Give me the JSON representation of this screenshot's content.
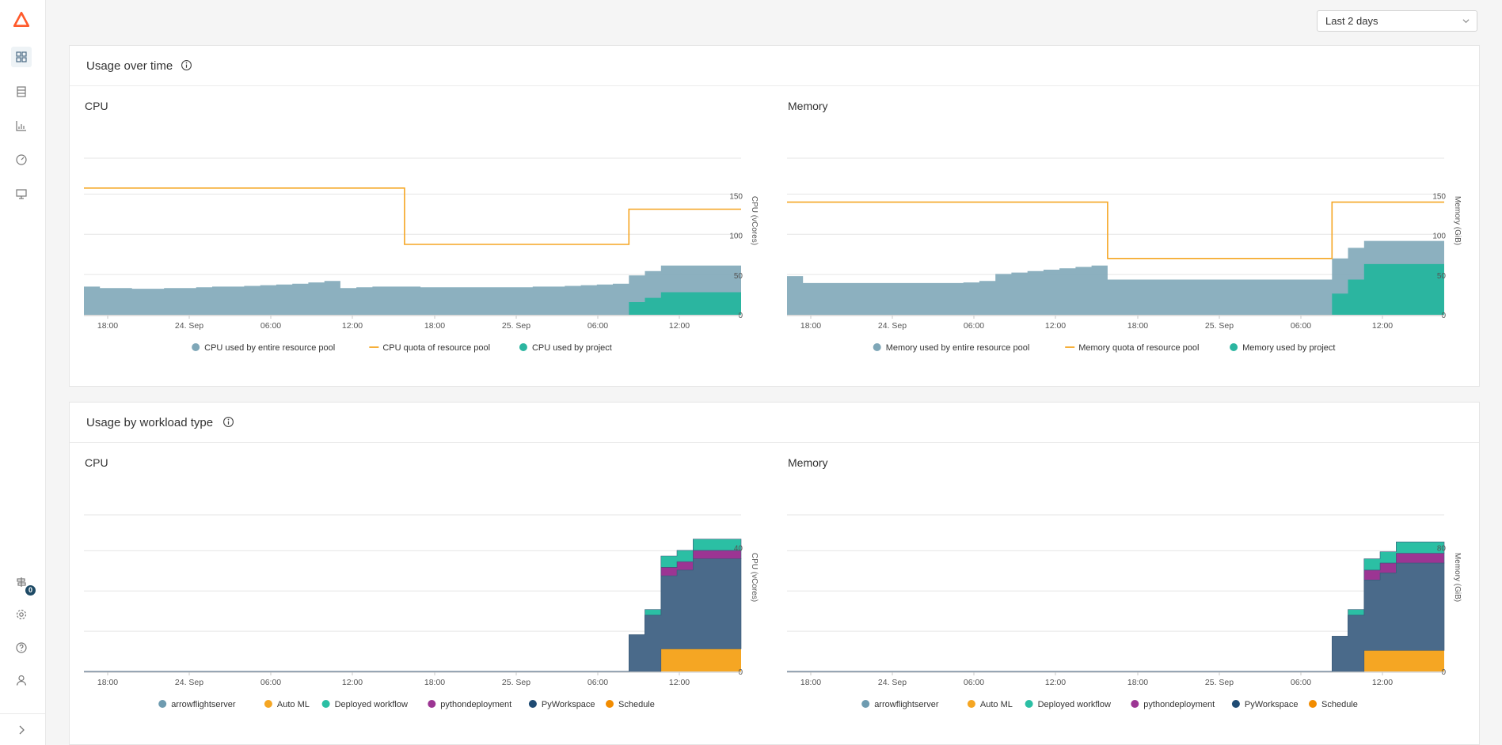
{
  "sidebar": {
    "items": [
      {
        "icon": "dashboard-icon"
      },
      {
        "icon": "list-icon"
      },
      {
        "icon": "bar-chart-icon"
      },
      {
        "icon": "gauge-icon"
      },
      {
        "icon": "monitor-icon"
      }
    ],
    "bottom": [
      {
        "icon": "signpost-icon",
        "badge": "0"
      },
      {
        "icon": "gear-icon"
      },
      {
        "icon": "help-icon"
      },
      {
        "icon": "user-icon"
      }
    ],
    "expand_icon": "chevron-right-icon"
  },
  "colors": {
    "pool": "#7fa7b8",
    "quota": "#f5a623",
    "project": "#2bb5a0",
    "arrowflightserver": "#6e9bb0",
    "automl": "#f5a623",
    "deployed_workflow": "#2bbfa4",
    "pythondeployment": "#9c3593",
    "pyworkspace": "#1f4b73",
    "schedule": "#f28c00"
  },
  "header": {
    "range_label": "Last 2 days"
  },
  "usage_over_time": {
    "title": "Usage over time",
    "cpu": {
      "title": "CPU",
      "ylabel": "CPU (vCores)",
      "yticks": [
        "0",
        "50",
        "100",
        "150"
      ],
      "xticks": [
        "18:00",
        "24. Sep",
        "06:00",
        "12:00",
        "18:00",
        "25. Sep",
        "06:00",
        "12:00"
      ],
      "legend": [
        "CPU used by entire resource pool",
        "CPU quota of resource pool",
        "CPU used by project"
      ]
    },
    "memory": {
      "title": "Memory",
      "ylabel": "Memory (GiB)",
      "yticks": [
        "0",
        "50",
        "100",
        "150"
      ],
      "xticks": [
        "18:00",
        "24. Sep",
        "06:00",
        "12:00",
        "18:00",
        "25. Sep",
        "06:00",
        "12:00"
      ],
      "legend": [
        "Memory used by entire resource pool",
        "Memory quota of resource pool",
        "Memory used by project"
      ]
    }
  },
  "usage_by_workload": {
    "title": "Usage by workload type",
    "cpu": {
      "title": "CPU",
      "ylabel": "CPU (vCores)",
      "yticks": [
        "0",
        "40"
      ],
      "xticks": [
        "18:00",
        "24. Sep",
        "06:00",
        "12:00",
        "18:00",
        "25. Sep",
        "06:00",
        "12:00"
      ],
      "legend": [
        "arrowflightserver",
        "Auto ML",
        "Deployed workflow",
        "pythondeployment",
        "PyWorkspace",
        "Schedule"
      ]
    },
    "memory": {
      "title": "Memory",
      "ylabel": "Memory (GiB)",
      "yticks": [
        "0",
        "80"
      ],
      "xticks": [
        "18:00",
        "24. Sep",
        "06:00",
        "12:00",
        "18:00",
        "25. Sep",
        "06:00",
        "12:00"
      ],
      "legend": [
        "arrowflightserver",
        "Auto ML",
        "Deployed workflow",
        "pythondeployment",
        "PyWorkspace",
        "Schedule"
      ]
    }
  },
  "chart_data": [
    {
      "type": "area",
      "title": "CPU",
      "ylabel": "CPU (vCores)",
      "ylim": [
        0,
        200
      ],
      "series": [
        {
          "name": "CPU used by entire resource pool",
          "values": [
            40,
            38,
            38,
            37,
            37,
            38,
            38,
            39,
            40,
            40,
            41,
            42,
            43,
            44,
            46,
            48,
            38,
            39,
            40,
            40,
            40,
            39,
            39,
            39,
            39,
            39,
            39,
            39,
            40,
            40,
            41,
            42,
            43,
            44,
            56,
            62,
            70,
            70,
            70,
            70,
            70
          ]
        },
        {
          "name": "CPU quota of resource pool",
          "values": [
            180,
            180,
            180,
            180,
            180,
            180,
            180,
            180,
            180,
            180,
            180,
            180,
            180,
            180,
            180,
            180,
            180,
            180,
            180,
            180,
            100,
            100,
            100,
            100,
            100,
            100,
            100,
            100,
            100,
            100,
            100,
            100,
            100,
            100,
            150,
            150,
            150,
            150,
            150,
            150,
            150
          ]
        },
        {
          "name": "CPU used by project",
          "values": [
            0,
            0,
            0,
            0,
            0,
            0,
            0,
            0,
            0,
            0,
            0,
            0,
            0,
            0,
            0,
            0,
            0,
            0,
            0,
            0,
            0,
            0,
            0,
            0,
            0,
            0,
            0,
            0,
            0,
            0,
            0,
            0,
            0,
            0,
            18,
            24,
            32,
            32,
            32,
            32,
            32
          ]
        }
      ]
    },
    {
      "type": "area",
      "title": "Memory",
      "ylabel": "Memory (GiB)",
      "ylim": [
        0,
        200
      ],
      "series": [
        {
          "name": "Memory used by entire resource pool",
          "values": [
            55,
            45,
            45,
            45,
            45,
            45,
            45,
            45,
            45,
            45,
            45,
            46,
            48,
            58,
            60,
            62,
            64,
            66,
            68,
            70,
            50,
            50,
            50,
            50,
            50,
            50,
            50,
            50,
            50,
            50,
            50,
            50,
            50,
            50,
            80,
            95,
            105,
            105,
            105,
            105,
            105
          ]
        },
        {
          "name": "Memory quota of resource pool",
          "values": [
            160,
            160,
            160,
            160,
            160,
            160,
            160,
            160,
            160,
            160,
            160,
            160,
            160,
            160,
            160,
            160,
            160,
            160,
            160,
            160,
            80,
            80,
            80,
            80,
            80,
            80,
            80,
            80,
            80,
            80,
            80,
            80,
            80,
            80,
            160,
            160,
            160,
            160,
            160,
            160,
            160
          ]
        },
        {
          "name": "Memory used by project",
          "values": [
            0,
            0,
            0,
            0,
            0,
            0,
            0,
            0,
            0,
            0,
            0,
            0,
            0,
            0,
            0,
            0,
            0,
            0,
            0,
            0,
            0,
            0,
            0,
            0,
            0,
            0,
            0,
            0,
            0,
            0,
            0,
            0,
            0,
            0,
            30,
            50,
            72,
            72,
            72,
            72,
            72
          ]
        }
      ]
    },
    {
      "type": "area",
      "title": "CPU",
      "ylabel": "CPU (vCores)",
      "ylim": [
        0,
        50
      ],
      "series": [
        {
          "name": "Schedule",
          "values": [
            0,
            0,
            0,
            0,
            0,
            0,
            0,
            0,
            0,
            0,
            0,
            0,
            0,
            0,
            0,
            0,
            0,
            0,
            0,
            0,
            0,
            0,
            0,
            0,
            0,
            0,
            0,
            0,
            0,
            0,
            0,
            0,
            0,
            0,
            0,
            0,
            8,
            8,
            8,
            8,
            8
          ]
        },
        {
          "name": "PyWorkspace",
          "values": [
            0,
            0,
            0,
            0,
            0,
            0,
            0,
            0,
            0,
            0,
            0,
            0,
            0,
            0,
            0,
            0,
            0,
            0,
            0,
            0,
            0,
            0,
            0,
            0,
            0,
            0,
            0,
            0,
            0,
            0,
            0,
            0,
            0,
            0,
            13,
            20,
            26,
            28,
            32,
            32,
            32
          ]
        },
        {
          "name": "pythondeployment",
          "values": [
            0,
            0,
            0,
            0,
            0,
            0,
            0,
            0,
            0,
            0,
            0,
            0,
            0,
            0,
            0,
            0,
            0,
            0,
            0,
            0,
            0,
            0,
            0,
            0,
            0,
            0,
            0,
            0,
            0,
            0,
            0,
            0,
            0,
            0,
            0,
            0,
            3,
            3,
            3,
            3,
            3
          ]
        },
        {
          "name": "Deployed workflow",
          "values": [
            0,
            0,
            0,
            0,
            0,
            0,
            0,
            0,
            0,
            0,
            0,
            0,
            0,
            0,
            0,
            0,
            0,
            0,
            0,
            0,
            0,
            0,
            0,
            0,
            0,
            0,
            0,
            0,
            0,
            0,
            0,
            0,
            0,
            0,
            0,
            2,
            4,
            4,
            4,
            4,
            4
          ]
        }
      ]
    },
    {
      "type": "area",
      "title": "Memory",
      "ylabel": "Memory (GiB)",
      "ylim": [
        0,
        100
      ],
      "series": [
        {
          "name": "Schedule",
          "values": [
            0,
            0,
            0,
            0,
            0,
            0,
            0,
            0,
            0,
            0,
            0,
            0,
            0,
            0,
            0,
            0,
            0,
            0,
            0,
            0,
            0,
            0,
            0,
            0,
            0,
            0,
            0,
            0,
            0,
            0,
            0,
            0,
            0,
            0,
            0,
            0,
            15,
            15,
            15,
            15,
            15
          ]
        },
        {
          "name": "PyWorkspace",
          "values": [
            0,
            0,
            0,
            0,
            0,
            0,
            0,
            0,
            0,
            0,
            0,
            0,
            0,
            0,
            0,
            0,
            0,
            0,
            0,
            0,
            0,
            0,
            0,
            0,
            0,
            0,
            0,
            0,
            0,
            0,
            0,
            0,
            0,
            0,
            25,
            40,
            50,
            55,
            62,
            62,
            62
          ]
        },
        {
          "name": "pythondeployment",
          "values": [
            0,
            0,
            0,
            0,
            0,
            0,
            0,
            0,
            0,
            0,
            0,
            0,
            0,
            0,
            0,
            0,
            0,
            0,
            0,
            0,
            0,
            0,
            0,
            0,
            0,
            0,
            0,
            0,
            0,
            0,
            0,
            0,
            0,
            0,
            0,
            0,
            7,
            7,
            7,
            7,
            7
          ]
        },
        {
          "name": "Deployed workflow",
          "values": [
            0,
            0,
            0,
            0,
            0,
            0,
            0,
            0,
            0,
            0,
            0,
            0,
            0,
            0,
            0,
            0,
            0,
            0,
            0,
            0,
            0,
            0,
            0,
            0,
            0,
            0,
            0,
            0,
            0,
            0,
            0,
            0,
            0,
            0,
            0,
            4,
            8,
            8,
            8,
            8,
            8
          ]
        }
      ]
    }
  ]
}
